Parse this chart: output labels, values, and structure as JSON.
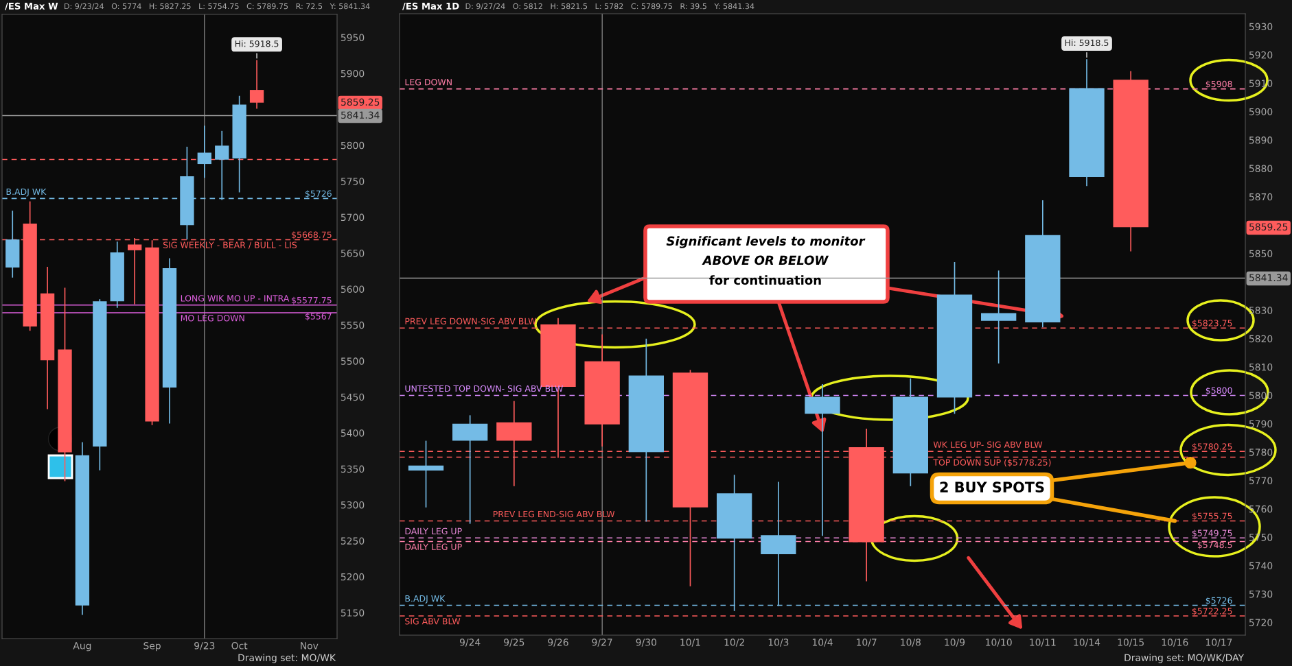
{
  "chart_data": [
    {
      "type": "candlestick",
      "title": "/ES Max W",
      "subtitle": "D: 9/23/24   O: 5774   H: 5827.25   L: 5754.75   C: 5789.75   R: 72.5   Y: 5841.34",
      "categories": [
        null,
        null,
        null,
        null,
        "Aug",
        null,
        null,
        null,
        "Sep",
        null,
        null,
        "9/23",
        null,
        "Oct",
        null,
        null,
        null,
        "Nov",
        null
      ],
      "ohlc": [
        [
          5630,
          5709,
          5616,
          5669
        ],
        [
          5691,
          5722,
          5542,
          5548
        ],
        [
          5594,
          5631,
          5433,
          5501
        ],
        [
          5516,
          5602,
          5333,
          5373
        ],
        [
          5160,
          5387,
          5147,
          5369
        ],
        [
          5381,
          5586,
          5348,
          5583
        ],
        [
          5583,
          5666,
          5574,
          5651
        ],
        [
          5662,
          5671,
          5579,
          5654
        ],
        [
          5658,
          5668,
          5411,
          5416
        ],
        [
          5463,
          5643,
          5413,
          5629
        ],
        [
          5689,
          5798,
          5669,
          5757
        ],
        [
          5774,
          5827.25,
          5754.75,
          5789.75
        ],
        [
          5780,
          5820,
          5724,
          5799.5
        ],
        [
          5781.75,
          5868.75,
          5734.5,
          5856.5
        ],
        [
          5877,
          5918.5,
          5850.75,
          5859.25
        ],
        null,
        null,
        null,
        null
      ],
      "colors": [
        "#74bbe6",
        "#ff5c5c",
        "#ff5c5c",
        "#ff5c5c",
        "#74bbe6",
        "#74bbe6",
        "#74bbe6",
        "#ff5c5c",
        "#ff5c5c",
        "#74bbe6",
        "#74bbe6",
        "#74bbe6",
        "#74bbe6",
        "#74bbe6",
        "#ff5c5c",
        null,
        null,
        null,
        null
      ],
      "ylim": [
        5114,
        5982
      ],
      "yticks": [
        5150,
        5200,
        5250,
        5300,
        5350,
        5400,
        5450,
        5500,
        5550,
        5600,
        5650,
        5700,
        5750,
        5800,
        5900,
        5950
      ],
      "ref_lines": [
        {
          "axis": "y",
          "value": 5780.25,
          "color": "#ff5c5c",
          "line_style": "dashed"
        },
        {
          "axis": "y",
          "value": 5726,
          "label": "B.ADJ WK",
          "color": "#74bbe6",
          "line_style": "dashed"
        },
        {
          "axis": "y",
          "value": 5668.75,
          "label": "SIG WEEKLY - BEAR / BULL - LIS",
          "color": "#ff5c5c",
          "line_style": "dashed"
        },
        {
          "axis": "y",
          "value": 5577.75,
          "label": "LONG WIK MO UP - INTRA",
          "color": "#e060e0",
          "line_style": "solid"
        },
        {
          "axis": "y",
          "value": 5567,
          "label": "MO LEG DOWN",
          "color": "#e060e0",
          "line_style": "solid"
        },
        {
          "axis": "y",
          "value": 5841.34,
          "color": "#9a9a9a",
          "line_style": "solid"
        },
        {
          "axis": "x",
          "value": "9/23",
          "color": "#9a9a9a",
          "line_style": "solid"
        }
      ],
      "annotations": [
        {
          "text": "$5726",
          "y": 5726
        },
        {
          "text": "$5668.75",
          "y": 5668.75
        },
        {
          "text": "$5577.75",
          "y": 5577.75
        },
        {
          "text": "$5567",
          "y": 5567
        },
        "5859.25",
        "5841.34",
        {
          "text": "Hi: 5918.5",
          "y": 5918.5
        },
        "Drawing set: MO/WK"
      ]
    },
    {
      "type": "candlestick",
      "title": "/ES Max 1D",
      "subtitle": "D: 9/27/24   O: 5812   H: 5821.5   L: 5782   C: 5789.75   R: 39.5   Y: 5841.34",
      "categories": [
        null,
        "9/24",
        "9/25",
        "9/26",
        "9/27",
        "9/30",
        "10/1",
        "10/2",
        "10/3",
        "10/4",
        "10/7",
        "10/8",
        "10/9",
        "10/10",
        "10/11",
        "10/14",
        "10/15",
        "10/16",
        "10/17"
      ],
      "ohlc": [
        [
          5773.5,
          5784,
          5760.5,
          5775.25
        ],
        [
          5784,
          5793,
          5754.75,
          5790
        ],
        [
          5790.5,
          5798,
          5768,
          5784
        ],
        [
          5825,
          5827.25,
          5778,
          5803
        ],
        [
          5812,
          5821.5,
          5782,
          5789.75
        ],
        [
          5780,
          5820,
          5755.5,
          5807
        ],
        [
          5808,
          5809,
          5732.75,
          5760.5
        ],
        [
          5749.5,
          5772,
          5724,
          5765.5
        ],
        [
          5744,
          5769.5,
          5725.75,
          5750.75
        ],
        [
          5793.5,
          5804,
          5750.5,
          5799.5
        ],
        [
          5781.75,
          5788.25,
          5734.5,
          5748.25
        ],
        [
          5772.5,
          5806,
          5768,
          5799.5
        ],
        [
          5799.25,
          5847,
          5793.5,
          5835.5
        ],
        [
          5826.25,
          5844,
          5811.25,
          5829
        ],
        [
          5825.75,
          5868.75,
          5824,
          5856.5
        ],
        [
          5877,
          5918.5,
          5873.75,
          5908.25
        ],
        [
          5911.25,
          5914.25,
          5850.75,
          5859.25
        ],
        null,
        null
      ],
      "colors": [
        "#74bbe6",
        "#74bbe6",
        "#ff5c5c",
        "#ff5c5c",
        "#ff5c5c",
        "#74bbe6",
        "#ff5c5c",
        "#74bbe6",
        "#74bbe6",
        "#74bbe6",
        "#ff5c5c",
        "#74bbe6",
        "#74bbe6",
        "#74bbe6",
        "#74bbe6",
        "#74bbe6",
        "#ff5c5c",
        null,
        null
      ],
      "ylim": [
        5715.5,
        5934.5
      ],
      "yticks": [
        5720,
        5730,
        5740,
        5750,
        5760,
        5770,
        5780,
        5790,
        5800,
        5810,
        5820,
        5830,
        5850,
        5870,
        5880,
        5890,
        5900,
        5910,
        5920,
        5930
      ],
      "ref_lines": [
        {
          "axis": "y",
          "value": 5908,
          "label": "LEG DOWN",
          "color": "#ff7fa8",
          "line_style": "dashed"
        },
        {
          "axis": "y",
          "value": 5823.75,
          "label": "PREV LEG DOWN-SIG ABV BLW",
          "color": "#ff5c5c",
          "line_style": "dashed"
        },
        {
          "axis": "y",
          "value": 5800,
          "label": "UNTESTED TOP DOWN- SIG ABV BLW",
          "color": "#d98cff",
          "line_style": "dashed"
        },
        {
          "axis": "y",
          "value": 5780.25,
          "label": "WK LEG UP- SIG ABV BLW",
          "color": "#ff5c5c",
          "line_style": "dashed"
        },
        {
          "axis": "y",
          "value": 5778.25,
          "label": "TOP DOWN SUP ($5778.25)",
          "color": "#ff5c5c",
          "line_style": "dashed"
        },
        {
          "axis": "y",
          "value": 5755.75,
          "label": "PREV LEG END-SIG ABV BLW",
          "color": "#ff5c5c",
          "line_style": "dashed"
        },
        {
          "axis": "y",
          "value": 5749.75,
          "label": "DAILY LEG UP",
          "color": "#e88ad8",
          "line_style": "dashed"
        },
        {
          "axis": "y",
          "value": 5748.5,
          "label": "DAILY LEG UP",
          "color": "#ff7fa8",
          "line_style": "dashed"
        },
        {
          "axis": "y",
          "value": 5726,
          "label": "B.ADJ WK",
          "color": "#74bbe6",
          "line_style": "dashed"
        },
        {
          "axis": "y",
          "value": 5722.25,
          "label": "SIG ABV BLW",
          "color": "#ff5c5c",
          "line_style": "dashed"
        },
        {
          "axis": "y",
          "value": 5841.34,
          "color": "#9a9a9a",
          "line_style": "solid"
        },
        {
          "axis": "x",
          "value": "9/27",
          "color": "#9a9a9a",
          "line_style": "solid"
        }
      ],
      "annotations": [
        {
          "text": "$5908",
          "y": 5908
        },
        {
          "text": "$5823.75",
          "y": 5823.75
        },
        {
          "text": "$5800",
          "y": 5800
        },
        {
          "text": "$5780.25",
          "y": 5780.25
        },
        {
          "text": "$5755.75",
          "y": 5755.75
        },
        {
          "text": "$5749.75",
          "y": 5749.75
        },
        {
          "text": "$5748.5",
          "y": 5748.5
        },
        {
          "text": "$5726",
          "y": 5726
        },
        {
          "text": "$5722.25",
          "y": 5722.25
        },
        "5859.25",
        "5841.34",
        {
          "text": "Hi: 5918.5",
          "x": "10/14",
          "y": 5918.5
        },
        "Significant levels to monitor",
        "ABOVE OR BELOW",
        "for continuation",
        {
          "text": "2 BUY SPOTS",
          "x": "10/16",
          "y": 5755.75
        },
        "Drawing set: MO/WK/DAY"
      ]
    }
  ]
}
